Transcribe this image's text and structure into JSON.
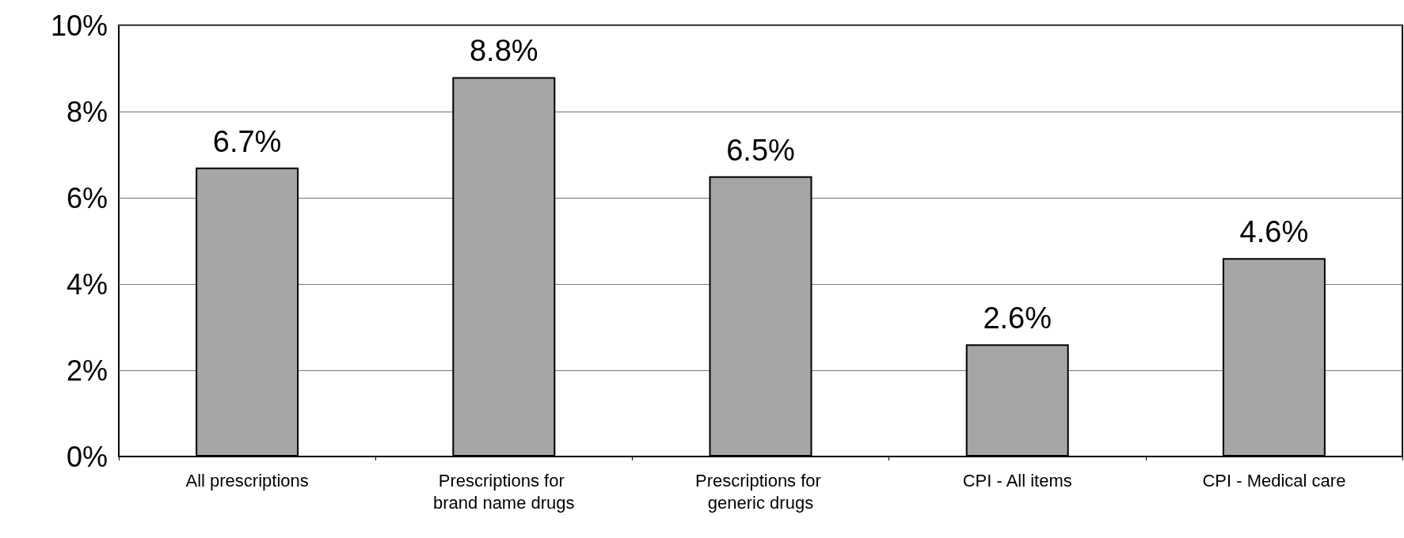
{
  "chart_data": {
    "type": "bar",
    "categories": [
      "All prescriptions",
      "Prescriptions for brand name drugs",
      "Prescriptions for generic drugs",
      "CPI - All items",
      "CPI - Medical care"
    ],
    "values": [
      6.7,
      8.8,
      6.5,
      2.6,
      4.6
    ],
    "value_labels": [
      "6.7%",
      "8.8%",
      "6.5%",
      "2.6%",
      "4.6%"
    ],
    "color": "#a6a6a6",
    "ylim": [
      0,
      10
    ],
    "yticks": [
      {
        "value": 0,
        "label": "0%"
      },
      {
        "value": 2,
        "label": "2%"
      },
      {
        "value": 4,
        "label": "4%"
      },
      {
        "value": 6,
        "label": "6%"
      },
      {
        "value": 8,
        "label": "8%"
      },
      {
        "value": 10,
        "label": "10%"
      }
    ],
    "grid": "y"
  }
}
